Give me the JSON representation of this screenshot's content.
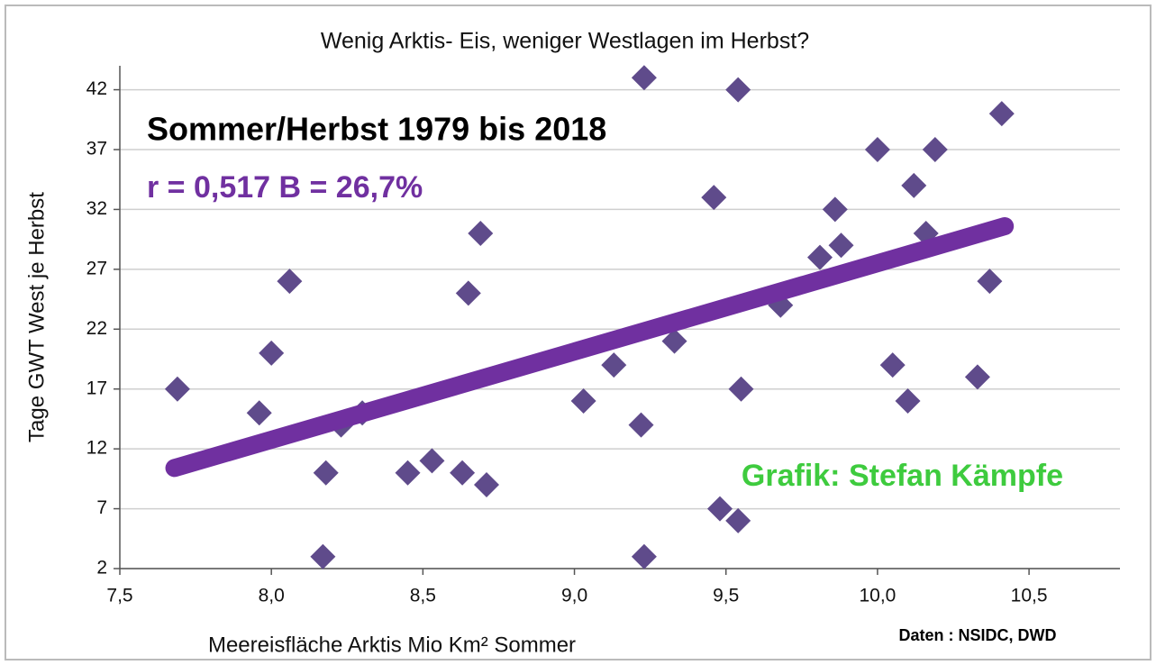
{
  "chart_data": {
    "type": "scatter",
    "title": "Wenig Arktis- Eis, weniger Westlagen im Herbst?",
    "x_label": "Meereisfläche Arktis Mio Km² Sommer",
    "y_label": "Tage GWT West je Herbst",
    "xlim": [
      7.5,
      10.8
    ],
    "ylim": [
      2,
      44
    ],
    "xticks": [
      {
        "value": 7.5,
        "label": "7,5"
      },
      {
        "value": 8.0,
        "label": "8,0"
      },
      {
        "value": 8.5,
        "label": "8,5"
      },
      {
        "value": 9.0,
        "label": "9,0"
      },
      {
        "value": 9.5,
        "label": "9,5"
      },
      {
        "value": 10.0,
        "label": "10,0"
      },
      {
        "value": 10.5,
        "label": "10,5"
      }
    ],
    "yticks": [
      2,
      7,
      12,
      17,
      22,
      27,
      32,
      37,
      42
    ],
    "grid": true,
    "series": [
      {
        "color": "#5f4b8b",
        "x": [
          7.69,
          7.96,
          8.0,
          8.06,
          8.18,
          8.17,
          8.23,
          8.3,
          8.45,
          8.53,
          8.63,
          8.65,
          8.69,
          8.71,
          9.03,
          9.13,
          9.22,
          9.23,
          9.23,
          9.33,
          9.46,
          9.48,
          9.54,
          9.54,
          9.55,
          9.68,
          9.81,
          9.86,
          9.88,
          10.0,
          10.05,
          10.1,
          10.12,
          10.16,
          10.19,
          10.33,
          10.37,
          10.41
        ],
        "values": [
          17,
          15,
          20,
          26,
          10,
          3,
          14,
          15,
          10,
          11,
          10,
          25,
          30,
          9,
          16,
          19,
          14,
          43,
          3,
          21,
          33,
          7,
          6,
          42,
          17,
          24,
          28,
          32,
          29,
          37,
          19,
          16,
          34,
          30,
          37,
          18,
          26,
          40
        ]
      }
    ],
    "trend": {
      "color": "#7030a0",
      "x": [
        7.68,
        10.42
      ],
      "values": [
        10.4,
        30.6
      ]
    },
    "annotations": [
      {
        "text": "Sommer/Herbst  1979 bis 2018",
        "color": "#000000"
      },
      {
        "text": "r = 0,517   B =  26,7%",
        "color": "#7030a0"
      },
      {
        "text": "Grafik: Stefan Kämpfe",
        "color": "#3ecb3e"
      },
      {
        "text": "Daten : NSIDC, DWD",
        "color": "#000000"
      }
    ]
  }
}
